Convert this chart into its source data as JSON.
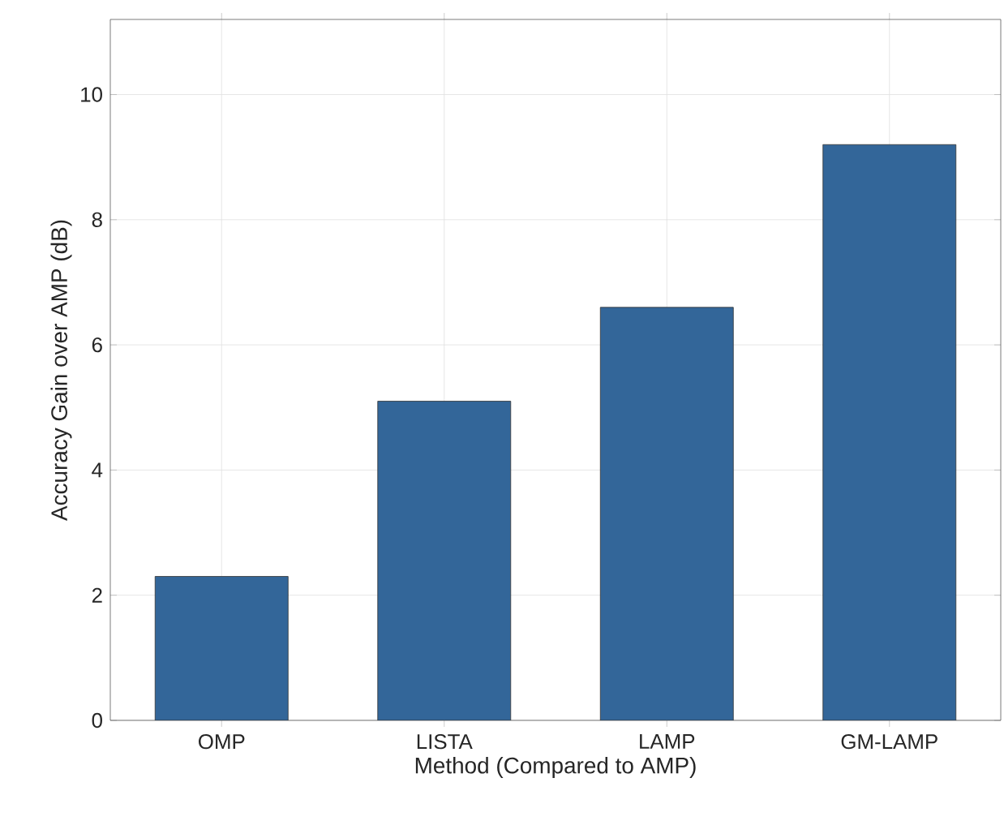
{
  "chart_data": {
    "type": "bar",
    "xlabel": "Method (Compared to AMP)",
    "ylabel": "Accuracy Gain over AMP (dB)",
    "categories": [
      "OMP",
      "LISTA",
      "LAMP",
      "GM-LAMP"
    ],
    "values": [
      2.3,
      5.1,
      6.6,
      9.2
    ],
    "color": "#336699",
    "ylim": [
      0,
      11.2
    ],
    "yticks": [
      0,
      2,
      4,
      6,
      8,
      10
    ],
    "grid": true
  }
}
